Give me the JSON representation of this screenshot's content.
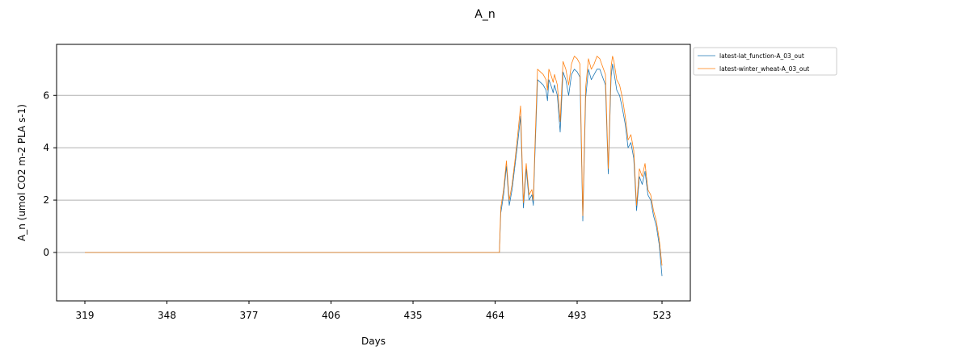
{
  "chart_data": {
    "type": "line",
    "title": "A_n",
    "xlabel": "Days",
    "ylabel": "A_n (umol CO2 m-2 PLA s-1)",
    "xlim": [
      309,
      533
    ],
    "ylim": [
      -1.85,
      7.95
    ],
    "x_ticks": [
      319,
      348,
      377,
      406,
      435,
      464,
      493,
      523
    ],
    "y_ticks": [
      0,
      2,
      4,
      6
    ],
    "grid": "horizontal",
    "legend_position": "outside-top-right",
    "series": [
      {
        "name": "latest-lat_function-A_03_out",
        "color": "#1f77b4",
        "x": [
          319,
          340,
          360,
          380,
          400,
          420,
          440,
          460,
          465.5,
          466,
          467,
          468,
          469,
          470,
          471,
          472,
          473,
          474,
          475,
          476,
          477,
          477.5,
          478,
          479,
          480,
          481,
          482,
          482.5,
          483,
          484,
          484.5,
          485,
          486,
          487,
          488,
          489,
          490,
          491,
          492,
          493,
          494,
          495,
          496,
          497,
          498,
          499,
          500,
          501,
          502,
          503,
          504,
          505,
          505.5,
          506,
          507,
          508,
          509,
          510,
          511,
          512,
          513,
          514,
          515,
          516,
          517,
          518,
          519,
          520,
          521,
          522,
          523
        ],
        "y": [
          0,
          0,
          0,
          0,
          0,
          0,
          0,
          0,
          0,
          1.5,
          2.2,
          3.3,
          1.8,
          2.4,
          3.3,
          4.2,
          5.2,
          1.7,
          3.2,
          2.0,
          2.2,
          1.8,
          3.5,
          6.6,
          6.5,
          6.4,
          6.2,
          5.8,
          6.6,
          6.3,
          6.1,
          6.4,
          6.0,
          4.6,
          6.9,
          6.6,
          6.0,
          6.8,
          7.0,
          6.9,
          6.7,
          1.2,
          5.9,
          7.0,
          6.6,
          6.8,
          7.0,
          7.0,
          6.7,
          6.4,
          3.0,
          6.7,
          7.2,
          6.9,
          6.2,
          6.0,
          5.5,
          4.9,
          4.0,
          4.2,
          3.6,
          1.6,
          2.9,
          2.6,
          3.1,
          2.2,
          2.0,
          1.4,
          1.0,
          0.3,
          -0.9
        ]
      },
      {
        "name": "latest-winter_wheat-A_03_out",
        "color": "#ff7f0e",
        "x": [
          319,
          340,
          360,
          380,
          400,
          420,
          440,
          460,
          465.5,
          466,
          467,
          468,
          469,
          470,
          471,
          472,
          473,
          474,
          475,
          476,
          477,
          477.5,
          478,
          479,
          480,
          481,
          482,
          482.5,
          483,
          484,
          484.5,
          485,
          486,
          487,
          488,
          489,
          490,
          491,
          492,
          493,
          494,
          495,
          496,
          497,
          498,
          499,
          500,
          501,
          502,
          503,
          504,
          505,
          505.5,
          506,
          507,
          508,
          509,
          510,
          511,
          512,
          513,
          514,
          515,
          516,
          517,
          518,
          519,
          520,
          521,
          522,
          523
        ],
        "y": [
          0,
          0,
          0,
          0,
          0,
          0,
          0,
          0,
          0,
          1.7,
          2.4,
          3.5,
          2.0,
          2.6,
          3.5,
          4.5,
          5.6,
          1.9,
          3.4,
          2.2,
          2.4,
          2.0,
          3.8,
          7.0,
          6.9,
          6.8,
          6.6,
          6.2,
          7.0,
          6.7,
          6.5,
          6.8,
          6.4,
          5.0,
          7.3,
          7.0,
          6.4,
          7.2,
          7.5,
          7.4,
          7.2,
          1.4,
          6.3,
          7.4,
          7.0,
          7.2,
          7.5,
          7.4,
          7.1,
          6.8,
          3.2,
          7.1,
          7.5,
          7.3,
          6.6,
          6.4,
          5.9,
          5.2,
          4.3,
          4.5,
          3.9,
          1.8,
          3.2,
          2.9,
          3.4,
          2.4,
          2.2,
          1.6,
          1.2,
          0.5,
          -0.5
        ]
      }
    ]
  }
}
